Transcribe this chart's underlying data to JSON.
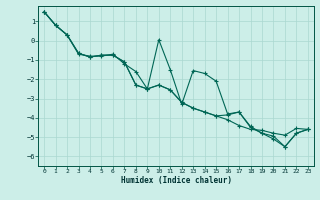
{
  "xlabel": "Humidex (Indice chaleur)",
  "ylabel": "",
  "xlim": [
    -0.5,
    23.5
  ],
  "ylim": [
    -6.5,
    1.8
  ],
  "background_color": "#cceee8",
  "grid_color": "#aad8d0",
  "line_color": "#006655",
  "x_ticks": [
    0,
    1,
    2,
    3,
    4,
    5,
    6,
    7,
    8,
    9,
    10,
    11,
    12,
    13,
    14,
    15,
    16,
    17,
    18,
    19,
    20,
    21,
    22,
    23
  ],
  "y_ticks": [
    1,
    0,
    -1,
    -2,
    -3,
    -4,
    -5,
    -6
  ],
  "series1_x": [
    0,
    1,
    2,
    3,
    4,
    5,
    6,
    7,
    8,
    9,
    10,
    11,
    12,
    13,
    14,
    15,
    16,
    17,
    18,
    19,
    20,
    21,
    22,
    23
  ],
  "series1_y": [
    1.5,
    0.8,
    0.3,
    -0.7,
    -0.8,
    -0.8,
    -0.7,
    -1.2,
    -1.6,
    -2.5,
    -2.3,
    -2.55,
    -3.2,
    -3.5,
    -3.7,
    -3.9,
    -4.1,
    -4.4,
    -4.6,
    -4.65,
    -4.8,
    -4.9,
    -4.55,
    -4.6
  ],
  "series2_x": [
    0,
    1,
    2,
    3,
    4,
    5,
    6,
    7,
    8,
    9,
    10,
    11,
    12,
    13,
    14,
    15,
    16,
    17,
    18,
    19,
    20,
    21,
    22,
    23
  ],
  "series2_y": [
    1.5,
    0.8,
    0.3,
    -0.65,
    -0.85,
    -0.75,
    -0.75,
    -1.1,
    -2.3,
    -2.5,
    0.05,
    -1.5,
    -3.3,
    -1.55,
    -1.7,
    -2.1,
    -3.8,
    -3.7,
    -4.5,
    -4.8,
    -5.1,
    -5.5,
    -4.8,
    -4.6
  ],
  "series3_x": [
    0,
    1,
    2,
    3,
    4,
    5,
    6,
    7,
    8,
    9,
    10,
    11,
    12,
    13,
    14,
    15,
    16,
    17,
    18,
    19,
    20,
    21,
    22,
    23
  ],
  "series3_y": [
    1.5,
    0.8,
    0.3,
    -0.65,
    -0.85,
    -0.75,
    -0.75,
    -1.1,
    -2.3,
    -2.5,
    -2.3,
    -2.55,
    -3.2,
    -3.5,
    -3.7,
    -3.9,
    -3.85,
    -3.7,
    -4.45,
    -4.8,
    -4.95,
    -5.5,
    -4.8,
    -4.6
  ]
}
